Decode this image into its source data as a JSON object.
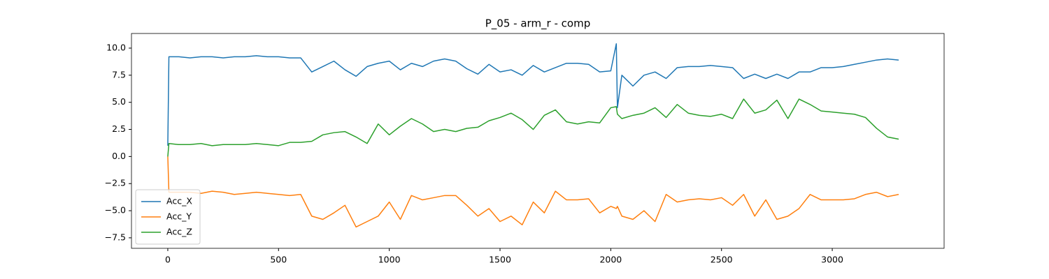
{
  "chart_data": {
    "type": "line",
    "title": "P_05 - arm_r - comp",
    "x": [
      0,
      5,
      50,
      100,
      150,
      200,
      250,
      300,
      350,
      400,
      450,
      500,
      550,
      600,
      650,
      700,
      750,
      800,
      850,
      900,
      950,
      1000,
      1050,
      1100,
      1150,
      1200,
      1250,
      1300,
      1350,
      1400,
      1450,
      1500,
      1550,
      1600,
      1650,
      1700,
      1750,
      1800,
      1850,
      1900,
      1950,
      2000,
      2025,
      2030,
      2050,
      2100,
      2150,
      2200,
      2250,
      2300,
      2350,
      2400,
      2450,
      2500,
      2550,
      2600,
      2650,
      2700,
      2750,
      2800,
      2850,
      2900,
      2950,
      3000,
      3050,
      3100,
      3150,
      3200,
      3250,
      3300
    ],
    "series": [
      {
        "name": "Acc_X",
        "color": "#1f77b4",
        "values": [
          1.0,
          9.2,
          9.2,
          9.1,
          9.2,
          9.2,
          9.1,
          9.2,
          9.2,
          9.3,
          9.2,
          9.2,
          9.1,
          9.1,
          7.8,
          8.3,
          8.8,
          8.0,
          7.4,
          8.3,
          8.6,
          8.8,
          8.0,
          8.6,
          8.3,
          8.8,
          9.0,
          8.8,
          8.1,
          7.6,
          8.5,
          7.8,
          8.0,
          7.5,
          8.4,
          7.8,
          8.2,
          8.6,
          8.6,
          8.5,
          7.8,
          7.9,
          10.4,
          4.5,
          7.5,
          6.5,
          7.5,
          7.8,
          7.2,
          8.2,
          8.3,
          8.3,
          8.4,
          8.3,
          8.2,
          7.2,
          7.6,
          7.2,
          7.6,
          7.2,
          7.8,
          7.8,
          8.2,
          8.2,
          8.3,
          8.5,
          8.7,
          8.9,
          9.0,
          8.9
        ]
      },
      {
        "name": "Acc_Y",
        "color": "#ff7f0e",
        "values": [
          0,
          -3.3,
          -3.3,
          -3.3,
          -3.4,
          -3.2,
          -3.3,
          -3.5,
          -3.4,
          -3.3,
          -3.4,
          -3.5,
          -3.6,
          -3.5,
          -5.5,
          -5.8,
          -5.2,
          -4.5,
          -6.5,
          -6.0,
          -5.5,
          -4.2,
          -5.8,
          -3.6,
          -4.0,
          -3.8,
          -3.6,
          -3.6,
          -4.5,
          -5.5,
          -4.8,
          -6.0,
          -5.5,
          -6.3,
          -4.2,
          -5.2,
          -3.2,
          -4.0,
          -4.0,
          -3.9,
          -5.2,
          -4.6,
          -4.8,
          -4.6,
          -5.5,
          -5.8,
          -5.0,
          -6.0,
          -3.5,
          -4.2,
          -4.0,
          -3.9,
          -4.0,
          -3.8,
          -4.5,
          -3.5,
          -5.5,
          -4.0,
          -5.8,
          -5.5,
          -4.8,
          -3.5,
          -4.0,
          -4.0,
          -4.0,
          -3.9,
          -3.5,
          -3.3,
          -3.7,
          -3.5
        ]
      },
      {
        "name": "Acc_Z",
        "color": "#2ca02c",
        "values": [
          0,
          1.2,
          1.1,
          1.1,
          1.2,
          1.0,
          1.1,
          1.1,
          1.1,
          1.2,
          1.1,
          1.0,
          1.3,
          1.3,
          1.4,
          2.0,
          2.2,
          2.3,
          1.8,
          1.2,
          3.0,
          2.0,
          2.8,
          3.5,
          3.0,
          2.3,
          2.5,
          2.3,
          2.6,
          2.7,
          3.3,
          3.6,
          4.0,
          3.4,
          2.5,
          3.8,
          4.3,
          3.2,
          3.0,
          3.2,
          3.1,
          4.5,
          4.6,
          3.9,
          3.5,
          3.8,
          4.0,
          4.5,
          3.6,
          4.8,
          4.0,
          3.8,
          3.7,
          3.9,
          3.5,
          5.3,
          4.0,
          4.3,
          5.2,
          3.5,
          5.3,
          4.8,
          4.2,
          4.1,
          4.0,
          3.9,
          3.6,
          2.6,
          1.8,
          1.6
        ]
      }
    ],
    "xlim": [
      -164,
      3505
    ],
    "ylim": [
      -8.47,
      11.35
    ],
    "xticks": [
      0,
      500,
      1000,
      1500,
      2000,
      2500,
      3000
    ],
    "yticks": [
      {
        "value": -7.5,
        "label": "−7.5"
      },
      {
        "value": -5.0,
        "label": "−5.0"
      },
      {
        "value": -2.5,
        "label": "−2.5"
      },
      {
        "value": 0,
        "label": "0.0"
      },
      2.5,
      {
        "value": 5.0,
        "label": "5.0"
      },
      7.5,
      {
        "value": 10.0,
        "label": "10.0"
      }
    ],
    "legend": "lower left"
  }
}
